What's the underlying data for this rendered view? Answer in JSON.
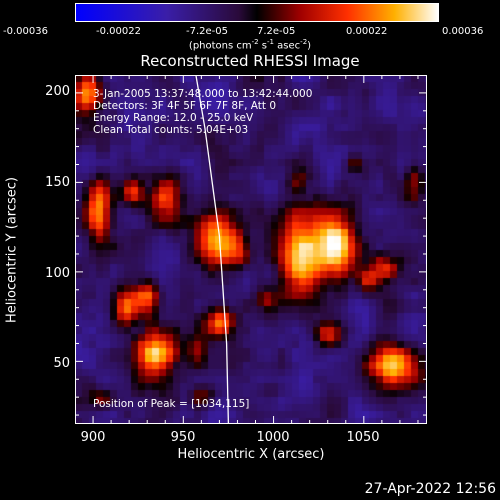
{
  "chart_data": {
    "type": "heatmap",
    "title": "Reconstructed RHESSI Image",
    "xlabel": "Heliocentric X (arcsec)",
    "ylabel": "Heliocentric Y (arcsec)",
    "xlim": [
      890,
      1085
    ],
    "ylim": [
      15,
      210
    ],
    "x_ticks": [
      "900",
      "950",
      "1000",
      "1050"
    ],
    "y_ticks": [
      "50",
      "100",
      "150",
      "200"
    ],
    "colorbar": {
      "range": [
        -0.00036,
        0.00036
      ],
      "tick_labels": [
        "-0.00036",
        "-0.00022",
        "-7.2e-05",
        "7.2e-05",
        "0.00022",
        "0.00036"
      ],
      "units": "(photons cm",
      "units_exp1": "-2",
      "units_mid": " s",
      "units_exp2": "-1",
      "units_mid2": " asec",
      "units_exp3": "-2",
      "units_end": ")"
    },
    "annotations": {
      "time_range": "3-Jan-2005 13:37:48.000 to 13:42:44.000",
      "detectors": "Detectors: 3F 4F 5F 6F 7F 8F, Att 0",
      "energy_range": "Energy Range: 12.0 - 25.0 keV",
      "method": "Clean     Total counts: 5.04E+03",
      "peak": "Position of Peak = [1034,115]"
    },
    "sources": [
      {
        "x": 1034,
        "y": 115,
        "peak": 1.0,
        "sx": 8,
        "sy": 14
      },
      {
        "x": 1015,
        "y": 110,
        "peak": 0.85,
        "sx": 8,
        "sy": 18
      },
      {
        "x": 968,
        "y": 117,
        "peak": 0.9,
        "sx": 7,
        "sy": 10
      },
      {
        "x": 980,
        "y": 112,
        "peak": 0.55,
        "sx": 5,
        "sy": 8
      },
      {
        "x": 935,
        "y": 55,
        "peak": 0.9,
        "sx": 8,
        "sy": 9
      },
      {
        "x": 1067,
        "y": 47,
        "peak": 0.85,
        "sx": 11,
        "sy": 8
      },
      {
        "x": 903,
        "y": 133,
        "peak": 0.75,
        "sx": 5,
        "sy": 12
      },
      {
        "x": 918,
        "y": 80,
        "peak": 0.7,
        "sx": 5,
        "sy": 8
      },
      {
        "x": 930,
        "y": 85,
        "peak": 0.65,
        "sx": 5,
        "sy": 7
      },
      {
        "x": 940,
        "y": 142,
        "peak": 0.6,
        "sx": 6,
        "sy": 9
      },
      {
        "x": 922,
        "y": 145,
        "peak": 0.55,
        "sx": 4,
        "sy": 5
      },
      {
        "x": 897,
        "y": 200,
        "peak": 0.85,
        "sx": 6,
        "sy": 8
      },
      {
        "x": 970,
        "y": 72,
        "peak": 0.65,
        "sx": 6,
        "sy": 6
      },
      {
        "x": 958,
        "y": 55,
        "peak": 0.5,
        "sx": 4,
        "sy": 6
      },
      {
        "x": 1062,
        "y": 102,
        "peak": 0.6,
        "sx": 6,
        "sy": 6
      },
      {
        "x": 1052,
        "y": 96,
        "peak": 0.55,
        "sx": 5,
        "sy": 5
      },
      {
        "x": 1013,
        "y": 150,
        "peak": 0.4,
        "sx": 4,
        "sy": 5
      },
      {
        "x": 1030,
        "y": 65,
        "peak": 0.45,
        "sx": 5,
        "sy": 5
      },
      {
        "x": 995,
        "y": 85,
        "peak": 0.35,
        "sx": 4,
        "sy": 4
      },
      {
        "x": 1045,
        "y": 160,
        "peak": 0.35,
        "sx": 4,
        "sy": 4
      },
      {
        "x": 960,
        "y": 30,
        "peak": 0.35,
        "sx": 5,
        "sy": 4
      },
      {
        "x": 1078,
        "y": 150,
        "peak": 0.4,
        "sx": 4,
        "sy": 7
      },
      {
        "x": 905,
        "y": 30,
        "peak": 0.4,
        "sx": 4,
        "sy": 4
      }
    ],
    "limb_curve": [
      [
        957,
        210
      ],
      [
        962,
        180
      ],
      [
        966,
        150
      ],
      [
        970,
        120
      ],
      [
        972,
        90
      ],
      [
        974,
        60
      ],
      [
        975,
        15
      ]
    ]
  },
  "footer": {
    "timestamp": "27-Apr-2022 12:56"
  }
}
